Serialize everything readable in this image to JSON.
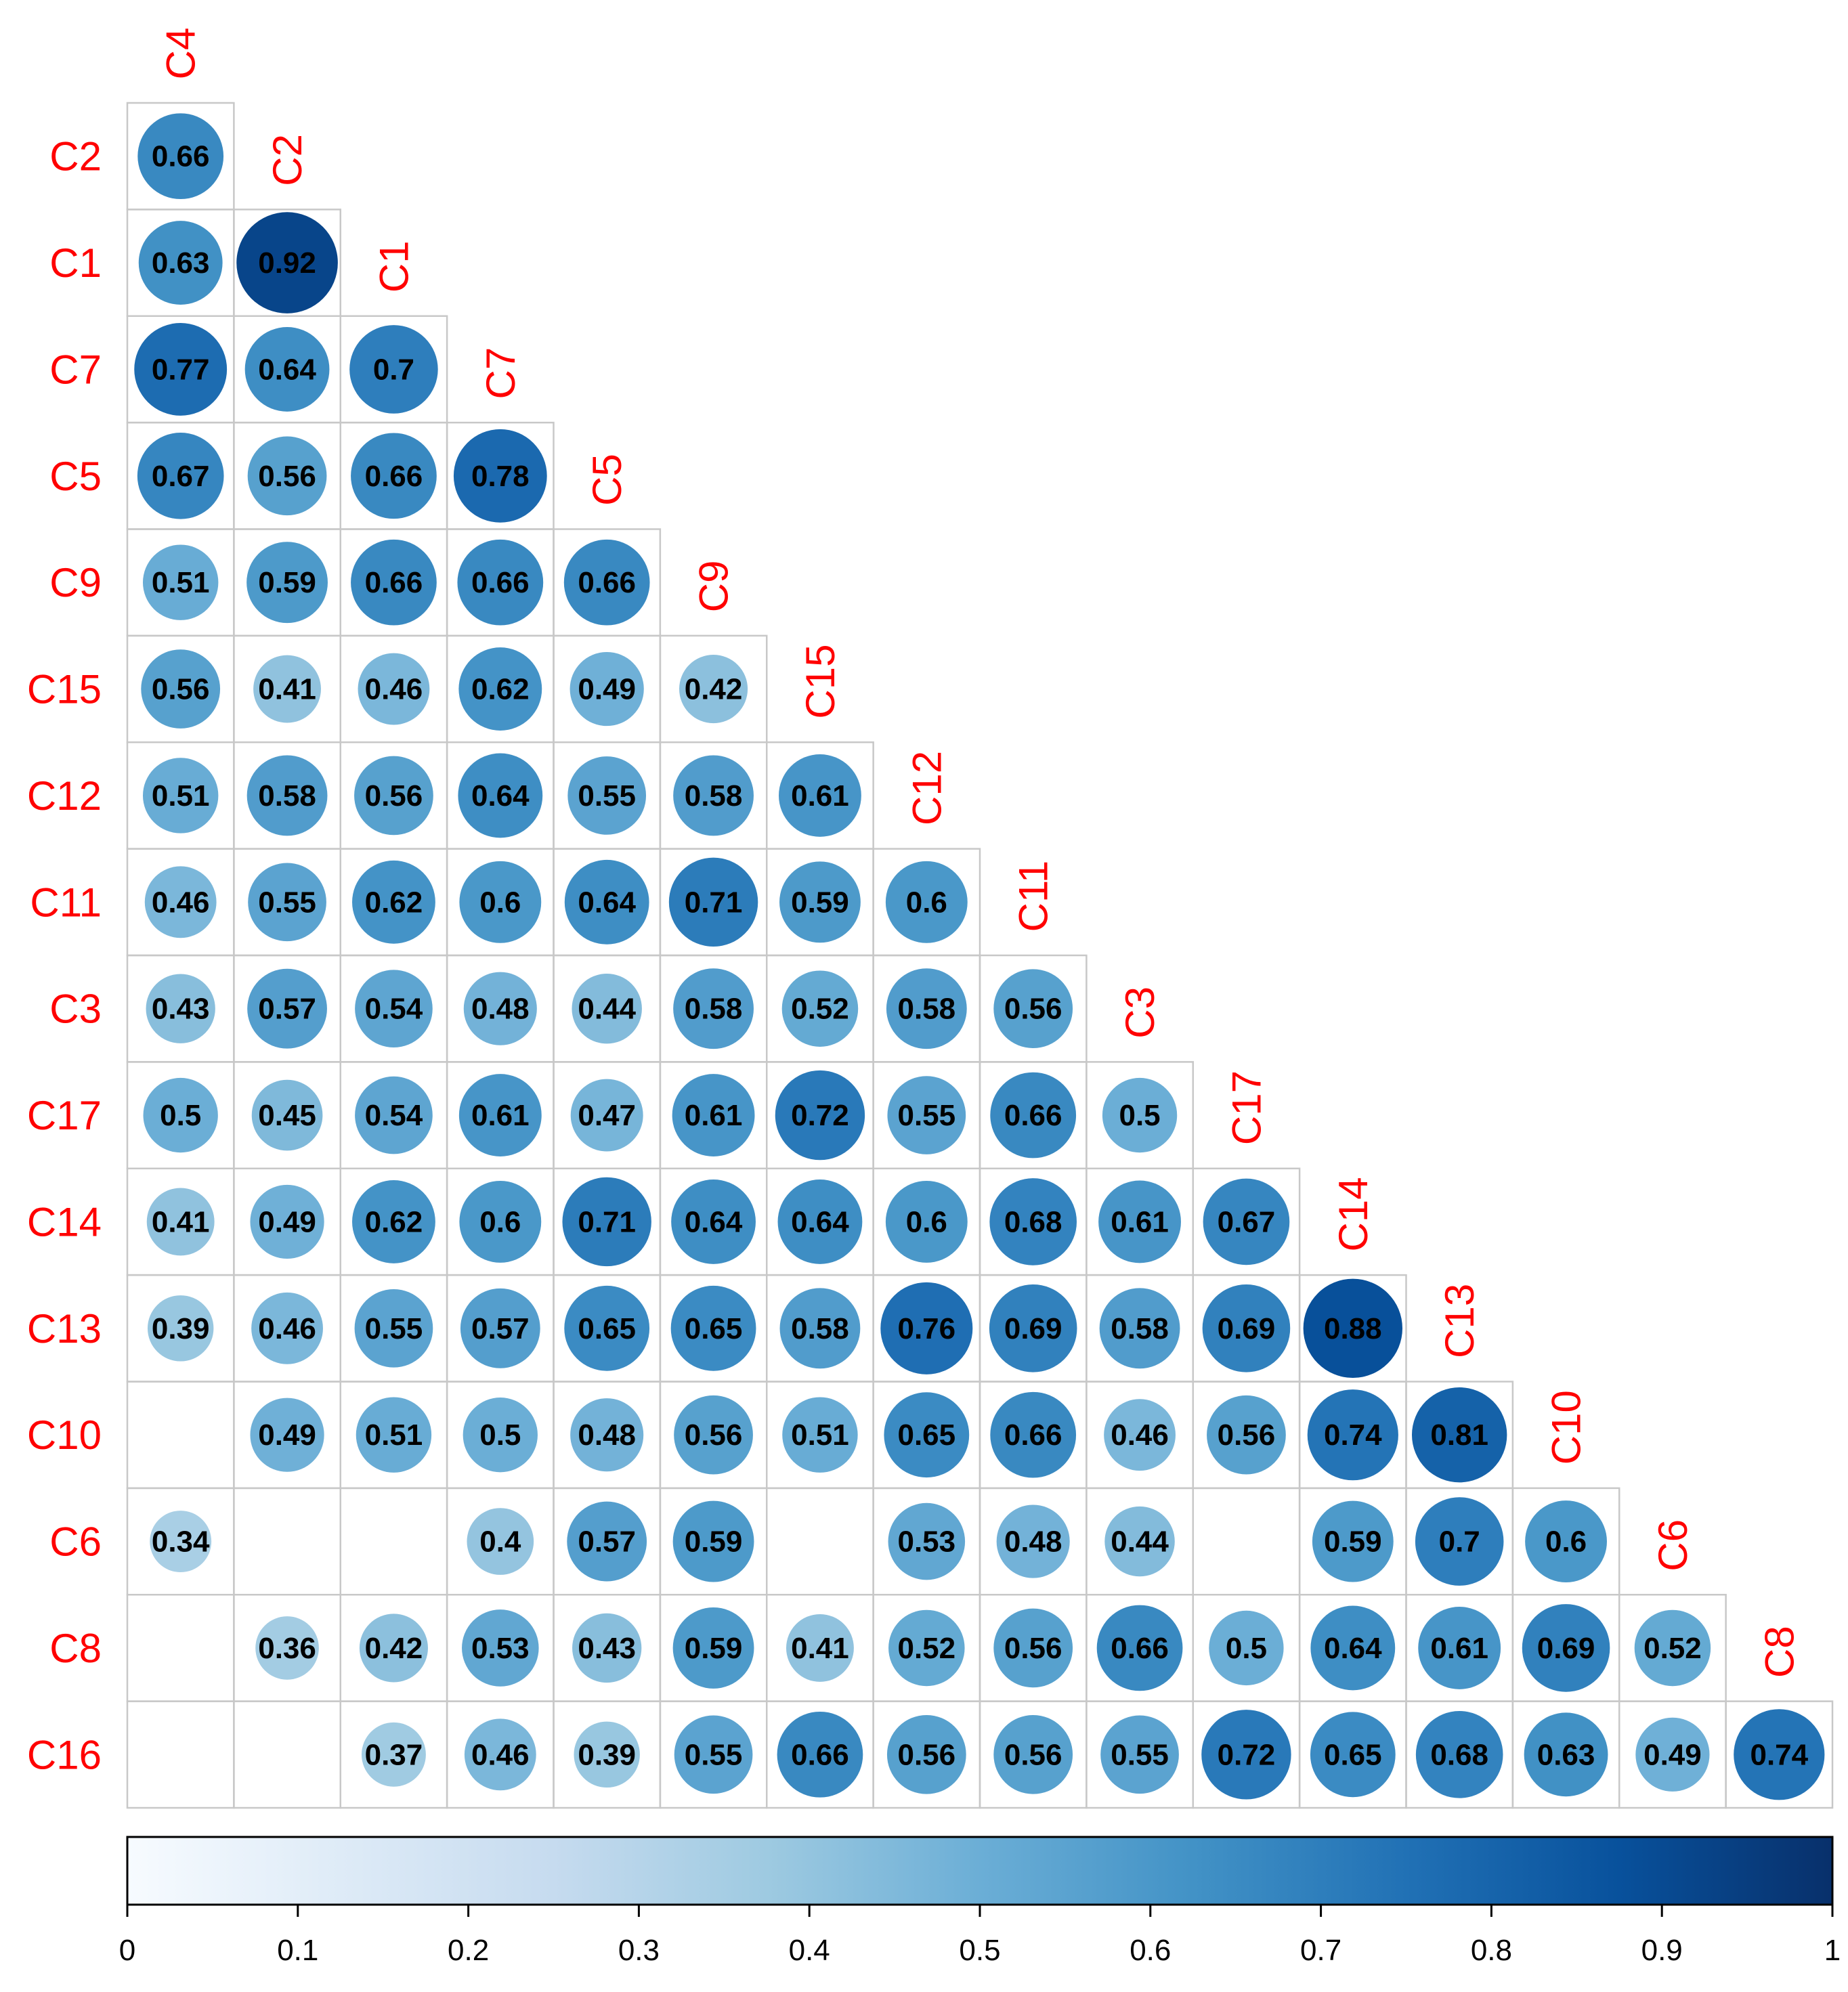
{
  "chart_data": {
    "type": "heatmap",
    "variables": [
      "C4",
      "C2",
      "C1",
      "C7",
      "C5",
      "C9",
      "C15",
      "C12",
      "C11",
      "C3",
      "C17",
      "C14",
      "C13",
      "C10",
      "C6",
      "C8",
      "C16"
    ],
    "matrix": [
      [],
      [
        0.66
      ],
      [
        0.63,
        0.92
      ],
      [
        0.77,
        0.64,
        0.7
      ],
      [
        0.67,
        0.56,
        0.66,
        0.78
      ],
      [
        0.51,
        0.59,
        0.66,
        0.66,
        0.66
      ],
      [
        0.56,
        0.41,
        0.46,
        0.62,
        0.49,
        0.42
      ],
      [
        0.51,
        0.58,
        0.56,
        0.64,
        0.55,
        0.58,
        0.61
      ],
      [
        0.46,
        0.55,
        0.62,
        0.6,
        0.64,
        0.71,
        0.59,
        0.6
      ],
      [
        0.43,
        0.57,
        0.54,
        0.48,
        0.44,
        0.58,
        0.52,
        0.58,
        0.56
      ],
      [
        0.5,
        0.45,
        0.54,
        0.61,
        0.47,
        0.61,
        0.72,
        0.55,
        0.66,
        0.5
      ],
      [
        0.41,
        0.49,
        0.62,
        0.6,
        0.71,
        0.64,
        0.64,
        0.6,
        0.68,
        0.61,
        0.67
      ],
      [
        0.39,
        0.46,
        0.55,
        0.57,
        0.65,
        0.65,
        0.58,
        0.76,
        0.69,
        0.58,
        0.69,
        0.88
      ],
      [
        null,
        0.49,
        0.51,
        0.5,
        0.48,
        0.56,
        0.51,
        0.65,
        0.66,
        0.46,
        0.56,
        0.74,
        0.81
      ],
      [
        0.34,
        null,
        null,
        0.4,
        0.57,
        0.59,
        null,
        0.53,
        0.48,
        0.44,
        null,
        0.59,
        0.7,
        0.6
      ],
      [
        null,
        0.36,
        0.42,
        0.53,
        0.43,
        0.59,
        0.41,
        0.52,
        0.56,
        0.66,
        0.5,
        0.64,
        0.61,
        0.69,
        0.52
      ],
      [
        null,
        null,
        0.37,
        0.46,
        0.39,
        0.55,
        0.66,
        0.56,
        0.56,
        0.55,
        0.72,
        0.65,
        0.68,
        0.63,
        0.49,
        0.74
      ]
    ],
    "colorbar": {
      "range": [
        0,
        1
      ],
      "ticks": [
        0,
        0.1,
        0.2,
        0.3,
        0.4,
        0.5,
        0.6,
        0.7,
        0.8,
        0.9,
        1
      ],
      "tick_labels": [
        "0",
        "0.1",
        "0.2",
        "0.3",
        "0.4",
        "0.5",
        "0.6",
        "0.7",
        "0.8",
        "0.9",
        "1"
      ],
      "colors": [
        "#f7fbff",
        "#deebf7",
        "#c6dbef",
        "#9ecae1",
        "#6baed6",
        "#4292c6",
        "#2171b5",
        "#08519c",
        "#08306b"
      ]
    },
    "label_color": "#ff0000",
    "grid_color": "#c8c8c8"
  }
}
